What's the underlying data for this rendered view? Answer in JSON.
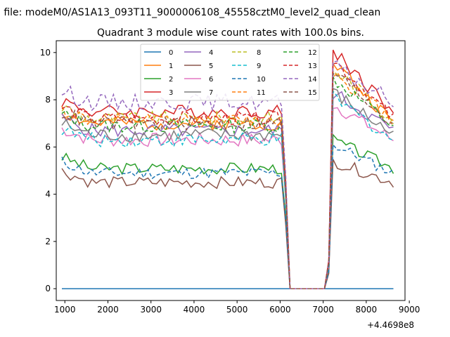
{
  "suptitle": "n file: modeM0/AS1A13_093T11_9000006108_45558cztM0_level2_quad_clean",
  "chart_data": {
    "type": "line",
    "title": "Quadrant 3 module wise count rates with 100.0s bins.",
    "xlabel": "",
    "ylabel": "",
    "x_offset_label": "+4.4698e8",
    "xlim": [
      800,
      8900
    ],
    "ylim": [
      -0.5,
      10.5
    ],
    "xticks": [
      1000,
      2000,
      3000,
      4000,
      5000,
      6000,
      7000,
      8000,
      9000
    ],
    "yticks": [
      0,
      2,
      4,
      6,
      8,
      10
    ],
    "grid": false,
    "legend_placement": "top-center",
    "legend_columns": 4,
    "series": [
      {
        "name": "0",
        "color": "#1f77b4",
        "dashed": false,
        "base": 0.0,
        "peak": 0.0,
        "amp": 0.0,
        "seed": 1
      },
      {
        "name": "1",
        "color": "#ff7f0e",
        "dashed": false,
        "base": 7.0,
        "peak": 9.6,
        "amp": 0.3,
        "seed": 2
      },
      {
        "name": "2",
        "color": "#2ca02c",
        "dashed": false,
        "base": 5.1,
        "peak": 6.3,
        "amp": 0.25,
        "seed": 3
      },
      {
        "name": "3",
        "color": "#d62728",
        "dashed": false,
        "base": 7.5,
        "peak": 10.1,
        "amp": 0.3,
        "seed": 4
      },
      {
        "name": "4",
        "color": "#9467bd",
        "dashed": false,
        "base": 6.7,
        "peak": 8.3,
        "amp": 0.3,
        "seed": 5
      },
      {
        "name": "5",
        "color": "#8c564b",
        "dashed": false,
        "base": 4.5,
        "peak": 5.4,
        "amp": 0.25,
        "seed": 6
      },
      {
        "name": "6",
        "color": "#e377c2",
        "dashed": false,
        "base": 6.3,
        "peak": 7.8,
        "amp": 0.3,
        "seed": 7
      },
      {
        "name": "7",
        "color": "#7f7f7f",
        "dashed": false,
        "base": 6.5,
        "peak": 8.3,
        "amp": 0.3,
        "seed": 8
      },
      {
        "name": "8",
        "color": "#bcbd22",
        "dashed": true,
        "base": 7.2,
        "peak": 9.3,
        "amp": 0.3,
        "seed": 9
      },
      {
        "name": "9",
        "color": "#17becf",
        "dashed": true,
        "base": 6.3,
        "peak": 8.1,
        "amp": 0.3,
        "seed": 10
      },
      {
        "name": "10",
        "color": "#1f77b4",
        "dashed": true,
        "base": 4.9,
        "peak": 6.1,
        "amp": 0.25,
        "seed": 11
      },
      {
        "name": "11",
        "color": "#ff7f0e",
        "dashed": true,
        "base": 7.1,
        "peak": 9.2,
        "amp": 0.3,
        "seed": 12
      },
      {
        "name": "12",
        "color": "#2ca02c",
        "dashed": true,
        "base": 6.9,
        "peak": 8.9,
        "amp": 0.3,
        "seed": 13
      },
      {
        "name": "13",
        "color": "#d62728",
        "dashed": true,
        "base": 7.2,
        "peak": 9.7,
        "amp": 0.3,
        "seed": 14
      },
      {
        "name": "14",
        "color": "#9467bd",
        "dashed": true,
        "base": 7.9,
        "peak": 9.4,
        "amp": 0.35,
        "seed": 15
      },
      {
        "name": "15",
        "color": "#8c564b",
        "dashed": true,
        "base": 7.0,
        "peak": 9.2,
        "amp": 0.3,
        "seed": 16
      }
    ],
    "x_start": 930,
    "x_step": 100,
    "x_end": 8630,
    "drop_start": 6130,
    "drop_zero_from": 6230,
    "drop_zero_to": 7030,
    "rise_end": 7230
  }
}
